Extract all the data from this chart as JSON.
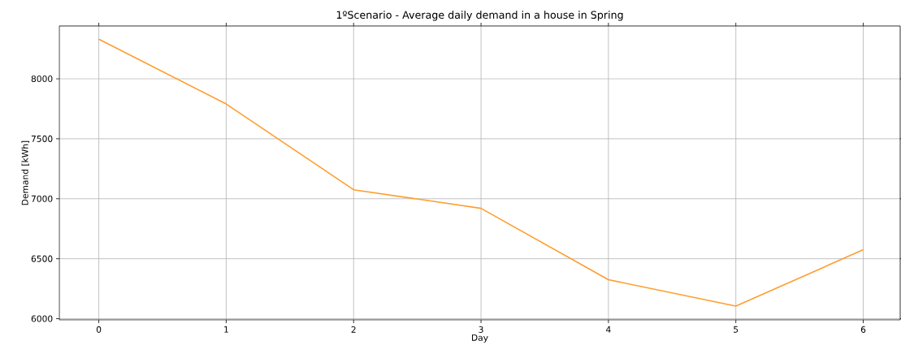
{
  "chart_data": {
    "type": "line",
    "title": "1ºScenario - Average daily demand in a house in Spring",
    "xlabel": "Day",
    "ylabel": "Demand [kWh]",
    "x": [
      0,
      1,
      2,
      3,
      4,
      5,
      6
    ],
    "series": [
      {
        "color": "#ff9d2e",
        "values": [
          8330,
          7790,
          7075,
          6920,
          6325,
          6105,
          6575
        ]
      }
    ],
    "xlim": [
      -0.31,
      6.29
    ],
    "ylim": [
      5990,
      8440
    ],
    "xticks": [
      0,
      1,
      2,
      3,
      4,
      5,
      6
    ],
    "yticks": [
      6000,
      6500,
      7000,
      7500,
      8000
    ],
    "grid": true,
    "marker": "none",
    "line_style": "solid"
  }
}
